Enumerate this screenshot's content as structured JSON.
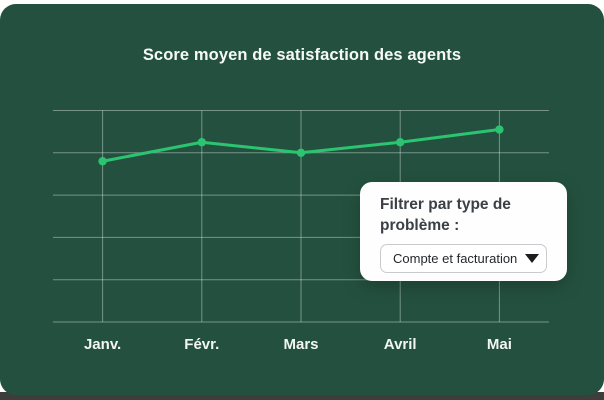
{
  "panel": {
    "bg_color": "#24513F",
    "outer_top_color": "#ffffff",
    "outer_bottom_color": "#3d3d3d"
  },
  "chart_data": {
    "type": "line",
    "title": "Score moyen de satisfaction des agents",
    "categories": [
      "Janv.",
      "Févr.",
      "Mars",
      "Avril",
      "Mai"
    ],
    "values": [
      3.8,
      4.25,
      4.0,
      4.25,
      4.55
    ],
    "xlabel": "",
    "ylabel": "",
    "ylim": [
      0,
      5
    ],
    "grid": "on",
    "legend": "none",
    "line_color": "#2BC471",
    "grid_color": "rgba(255,255,255,0.38)",
    "marker": "circle"
  },
  "filter_card": {
    "label": "Filtrer par type de problème :",
    "dropdown_value": "Compte et facturation",
    "dropdown_icon": "caret-down"
  }
}
